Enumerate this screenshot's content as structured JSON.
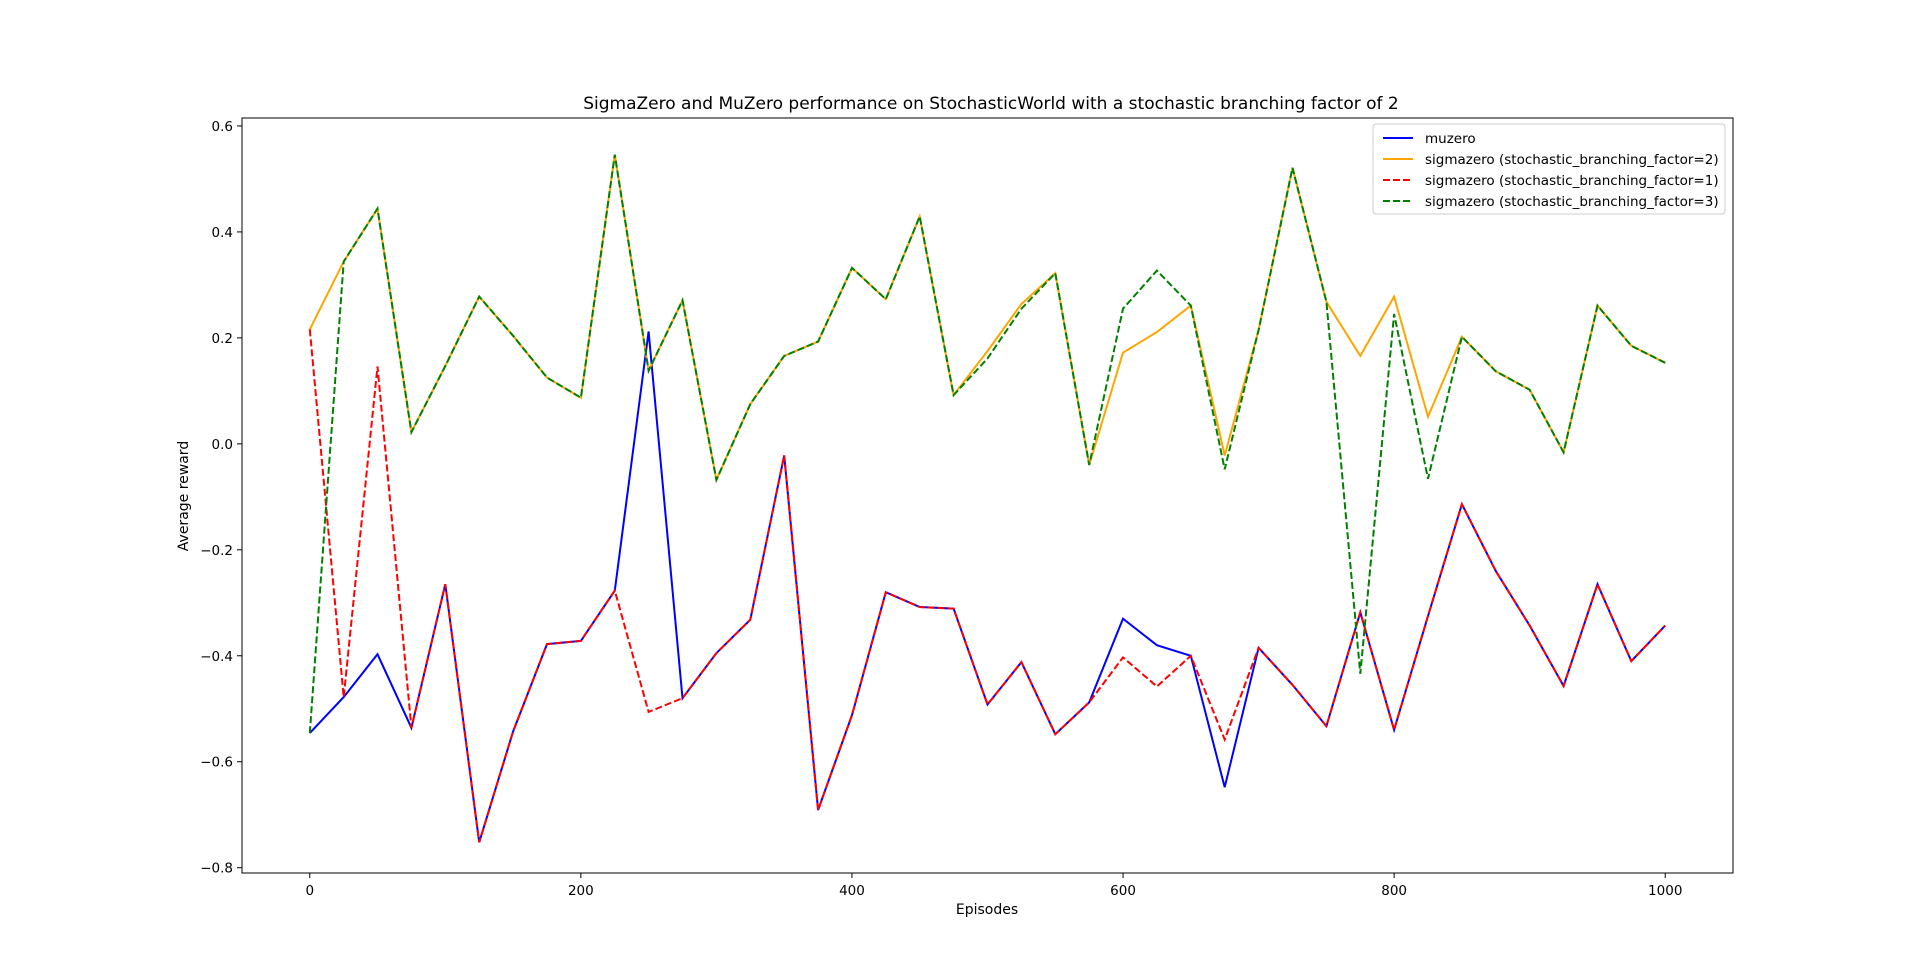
{
  "chart_data": {
    "type": "line",
    "title": "SigmaZero and MuZero performance on StochasticWorld with a stochastic branching factor of 2",
    "xlabel": "Episodes",
    "ylabel": "Average reward",
    "xlim": [
      -50,
      1050
    ],
    "ylim": [
      -0.81,
      0.615
    ],
    "xticks": [
      0,
      200,
      400,
      600,
      800,
      1000
    ],
    "xtick_labels": [
      "0",
      "200",
      "400",
      "600",
      "800",
      "1000"
    ],
    "yticks": [
      -0.8,
      -0.6,
      -0.4,
      -0.2,
      0.0,
      0.2,
      0.4,
      0.6
    ],
    "ytick_labels": [
      "−0.8",
      "−0.6",
      "−0.4",
      "−0.2",
      "0.0",
      "0.2",
      "0.4",
      "0.6"
    ],
    "grid": false,
    "legend_position": "top-right",
    "x": [
      0,
      25,
      50,
      75,
      100,
      125,
      150,
      175,
      200,
      225,
      250,
      275,
      300,
      325,
      350,
      375,
      400,
      425,
      450,
      475,
      500,
      525,
      550,
      575,
      600,
      625,
      650,
      675,
      700,
      725,
      750,
      775,
      800,
      825,
      850,
      875,
      900,
      925,
      950,
      975,
      1000
    ],
    "series": [
      {
        "name": "muzero",
        "color": "#0000ff",
        "dash": "solid",
        "values": [
          -0.546,
          -0.478,
          -0.397,
          -0.536,
          -0.265,
          -0.752,
          -0.543,
          -0.378,
          -0.372,
          -0.277,
          0.212,
          -0.48,
          -0.395,
          -0.332,
          -0.022,
          -0.691,
          -0.512,
          -0.28,
          -0.308,
          -0.311,
          -0.492,
          -0.412,
          -0.548,
          -0.488,
          -0.33,
          -0.38,
          -0.4,
          -0.648,
          -0.385,
          -0.455,
          -0.533,
          -0.318,
          -0.54,
          -0.325,
          -0.114,
          -0.24,
          -0.343,
          -0.457,
          -0.265,
          -0.41,
          -0.343
        ]
      },
      {
        "name": "sigmazero (stochastic_branching_factor=2)",
        "color": "#ffa500",
        "dash": "solid",
        "values": [
          0.216,
          0.344,
          0.444,
          0.022,
          0.147,
          0.278,
          0.204,
          0.125,
          0.087,
          0.546,
          0.138,
          0.271,
          -0.068,
          0.075,
          0.166,
          0.193,
          0.332,
          0.273,
          0.429,
          0.092,
          0.175,
          0.264,
          0.322,
          -0.04,
          0.172,
          0.211,
          0.261,
          -0.022,
          0.215,
          0.521,
          0.268,
          0.166,
          0.278,
          0.051,
          0.202,
          0.137,
          0.102,
          -0.016,
          0.261,
          0.185,
          0.153
        ]
      },
      {
        "name": "sigmazero (stochastic_branching_factor=1)",
        "color": "#ff0000",
        "dash": "dashed",
        "values": [
          0.216,
          -0.478,
          0.146,
          -0.536,
          -0.265,
          -0.752,
          -0.543,
          -0.378,
          -0.372,
          -0.277,
          -0.506,
          -0.48,
          -0.395,
          -0.332,
          -0.022,
          -0.691,
          -0.512,
          -0.28,
          -0.308,
          -0.311,
          -0.492,
          -0.412,
          -0.548,
          -0.488,
          -0.403,
          -0.458,
          -0.4,
          -0.558,
          -0.385,
          -0.455,
          -0.533,
          -0.318,
          -0.54,
          -0.325,
          -0.114,
          -0.24,
          -0.343,
          -0.457,
          -0.265,
          -0.41,
          -0.343
        ]
      },
      {
        "name": "sigmazero (stochastic_branching_factor=3)",
        "color": "#008000",
        "dash": "dashed",
        "values": [
          -0.546,
          0.344,
          0.444,
          0.022,
          0.147,
          0.278,
          0.204,
          0.125,
          0.087,
          0.546,
          0.138,
          0.271,
          -0.068,
          0.075,
          0.166,
          0.193,
          0.332,
          0.273,
          0.429,
          0.092,
          0.161,
          0.255,
          0.322,
          -0.04,
          0.255,
          0.327,
          0.261,
          -0.048,
          0.215,
          0.521,
          0.268,
          -0.434,
          0.245,
          -0.066,
          0.202,
          0.137,
          0.102,
          -0.016,
          0.261,
          0.185,
          0.153
        ]
      }
    ]
  }
}
